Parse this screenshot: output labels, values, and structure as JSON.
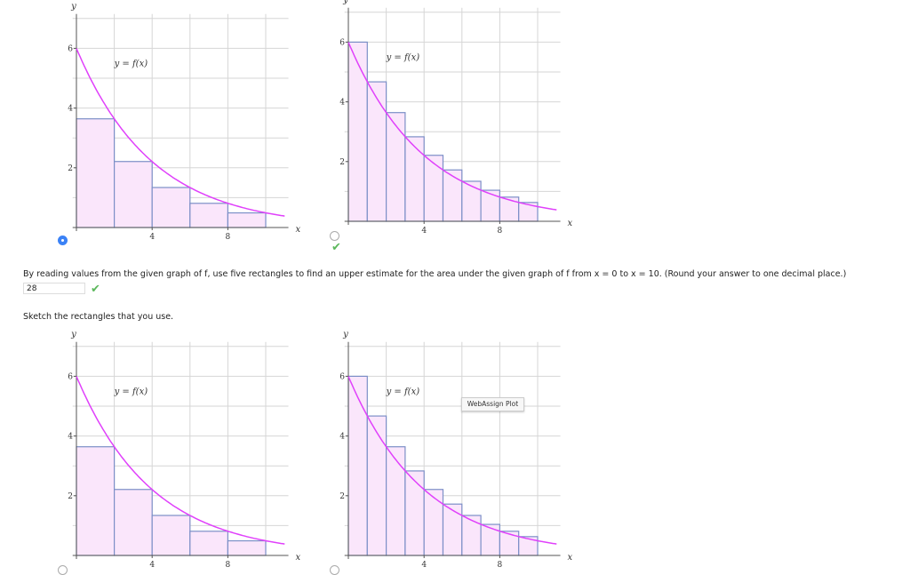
{
  "question": {
    "prompt": "By reading values from the given graph of f, use five rectangles to find an upper estimate for the area under the given graph of f from x = 0 to x = 10. (Round your answer to one decimal place.)",
    "answer_value": "28",
    "answer_status": "correct",
    "sketch_prompt": "Sketch the rectangles that you use.",
    "tooltip": "WebAssign Plot"
  },
  "colors": {
    "curve": "#e040fb",
    "rect_fill": "#fae6fb",
    "rect_stroke": "#7c8fc7",
    "grid": "#d6d6d6",
    "radio_selected": "#3b82f6",
    "check": "#5cb85c"
  },
  "chart_data": [
    {
      "type": "area",
      "curve_label": "y = f(x)",
      "xlabel": "x",
      "ylabel": "y",
      "x_ticks": [
        "4",
        "8"
      ],
      "y_ticks": [
        "2",
        "4",
        "6"
      ],
      "xlim": [
        0,
        11
      ],
      "ylim": [
        0,
        7
      ],
      "grid": true,
      "rect_width": 2,
      "rect_x": [
        0,
        2,
        4,
        6,
        8
      ],
      "rect_heights": [
        3.64,
        2.21,
        1.34,
        0.81,
        0.49
      ],
      "selected": true
    },
    {
      "type": "area",
      "curve_label": "y = f(x)",
      "xlabel": "x",
      "ylabel": "y",
      "x_ticks": [
        "4",
        "8"
      ],
      "y_ticks": [
        "2",
        "4",
        "6"
      ],
      "xlim": [
        0,
        11
      ],
      "ylim": [
        0,
        7
      ],
      "grid": true,
      "rect_width": 1,
      "rect_x": [
        0,
        1,
        2,
        3,
        4,
        5,
        6,
        7,
        8,
        9
      ],
      "rect_heights": [
        6,
        4.67,
        3.64,
        2.83,
        2.21,
        1.72,
        1.34,
        1.04,
        0.81,
        0.63
      ],
      "selected": false,
      "marked_correct": true
    },
    {
      "type": "area",
      "curve_label": "y = f(x)",
      "xlabel": "x",
      "ylabel": "y",
      "x_ticks": [
        "4",
        "8"
      ],
      "y_ticks": [
        "2",
        "4",
        "6"
      ],
      "xlim": [
        0,
        11
      ],
      "ylim": [
        0,
        7
      ],
      "grid": true,
      "rect_width": 2,
      "rect_x": [
        0,
        2,
        4,
        6,
        8
      ],
      "rect_heights": [
        3.64,
        2.21,
        1.34,
        0.81,
        0.49
      ],
      "selected": false
    },
    {
      "type": "area",
      "curve_label": "y = f(x)",
      "xlabel": "x",
      "ylabel": "y",
      "x_ticks": [
        "4",
        "8"
      ],
      "y_ticks": [
        "2",
        "4",
        "6"
      ],
      "xlim": [
        0,
        11
      ],
      "ylim": [
        0,
        7
      ],
      "grid": true,
      "rect_width": 1,
      "rect_x": [
        0,
        1,
        2,
        3,
        4,
        5,
        6,
        7,
        8,
        9
      ],
      "rect_heights": [
        6,
        4.67,
        3.64,
        2.83,
        2.21,
        1.72,
        1.34,
        1.04,
        0.81,
        0.63
      ],
      "selected": false
    }
  ]
}
